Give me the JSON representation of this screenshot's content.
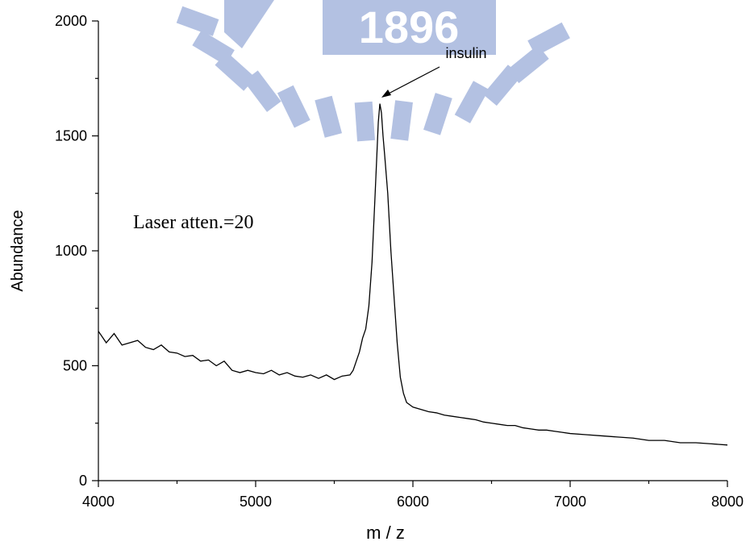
{
  "chart_data": {
    "type": "line",
    "watermark_text": "1896",
    "xlabel": "m / z",
    "ylabel": "Abundance",
    "annotations": [
      "insulin",
      "Laser atten.=20"
    ],
    "color": "#000000",
    "xlim": [
      4000,
      8000
    ],
    "xticks": [
      4000,
      5000,
      6000,
      7000,
      8000
    ],
    "x_minor_ticks": [
      4500,
      5500,
      6500,
      7500
    ],
    "ylim": [
      0,
      2000
    ],
    "yticks": [
      0,
      500,
      1000,
      1500,
      2000
    ],
    "y_minor_ticks": [
      250,
      750,
      1250,
      1750
    ],
    "x": [
      4000,
      4050,
      4100,
      4150,
      4200,
      4250,
      4300,
      4350,
      4400,
      4450,
      4500,
      4550,
      4600,
      4650,
      4700,
      4750,
      4800,
      4850,
      4900,
      4950,
      5000,
      5050,
      5100,
      5150,
      5200,
      5250,
      5300,
      5350,
      5400,
      5450,
      5500,
      5550,
      5600,
      5620,
      5640,
      5660,
      5680,
      5700,
      5720,
      5740,
      5760,
      5780,
      5790,
      5800,
      5810,
      5820,
      5840,
      5860,
      5880,
      5900,
      5920,
      5940,
      5960,
      6000,
      6050,
      6100,
      6150,
      6200,
      6250,
      6300,
      6350,
      6400,
      6450,
      6500,
      6550,
      6600,
      6650,
      6700,
      6750,
      6800,
      6850,
      6900,
      6950,
      7000,
      7100,
      7200,
      7300,
      7400,
      7500,
      7600,
      7700,
      7800,
      7900,
      8000
    ],
    "values": [
      650,
      600,
      640,
      590,
      600,
      610,
      580,
      570,
      590,
      560,
      555,
      540,
      545,
      520,
      525,
      500,
      520,
      480,
      470,
      480,
      470,
      465,
      480,
      460,
      470,
      455,
      450,
      460,
      445,
      460,
      440,
      455,
      460,
      480,
      520,
      560,
      620,
      660,
      760,
      950,
      1250,
      1560,
      1640,
      1600,
      1500,
      1420,
      1250,
      1000,
      800,
      600,
      450,
      380,
      340,
      320,
      310,
      300,
      295,
      285,
      280,
      275,
      270,
      265,
      255,
      250,
      245,
      240,
      240,
      230,
      225,
      220,
      220,
      215,
      210,
      205,
      200,
      195,
      190,
      185,
      175,
      175,
      165,
      165,
      160,
      155
    ]
  }
}
